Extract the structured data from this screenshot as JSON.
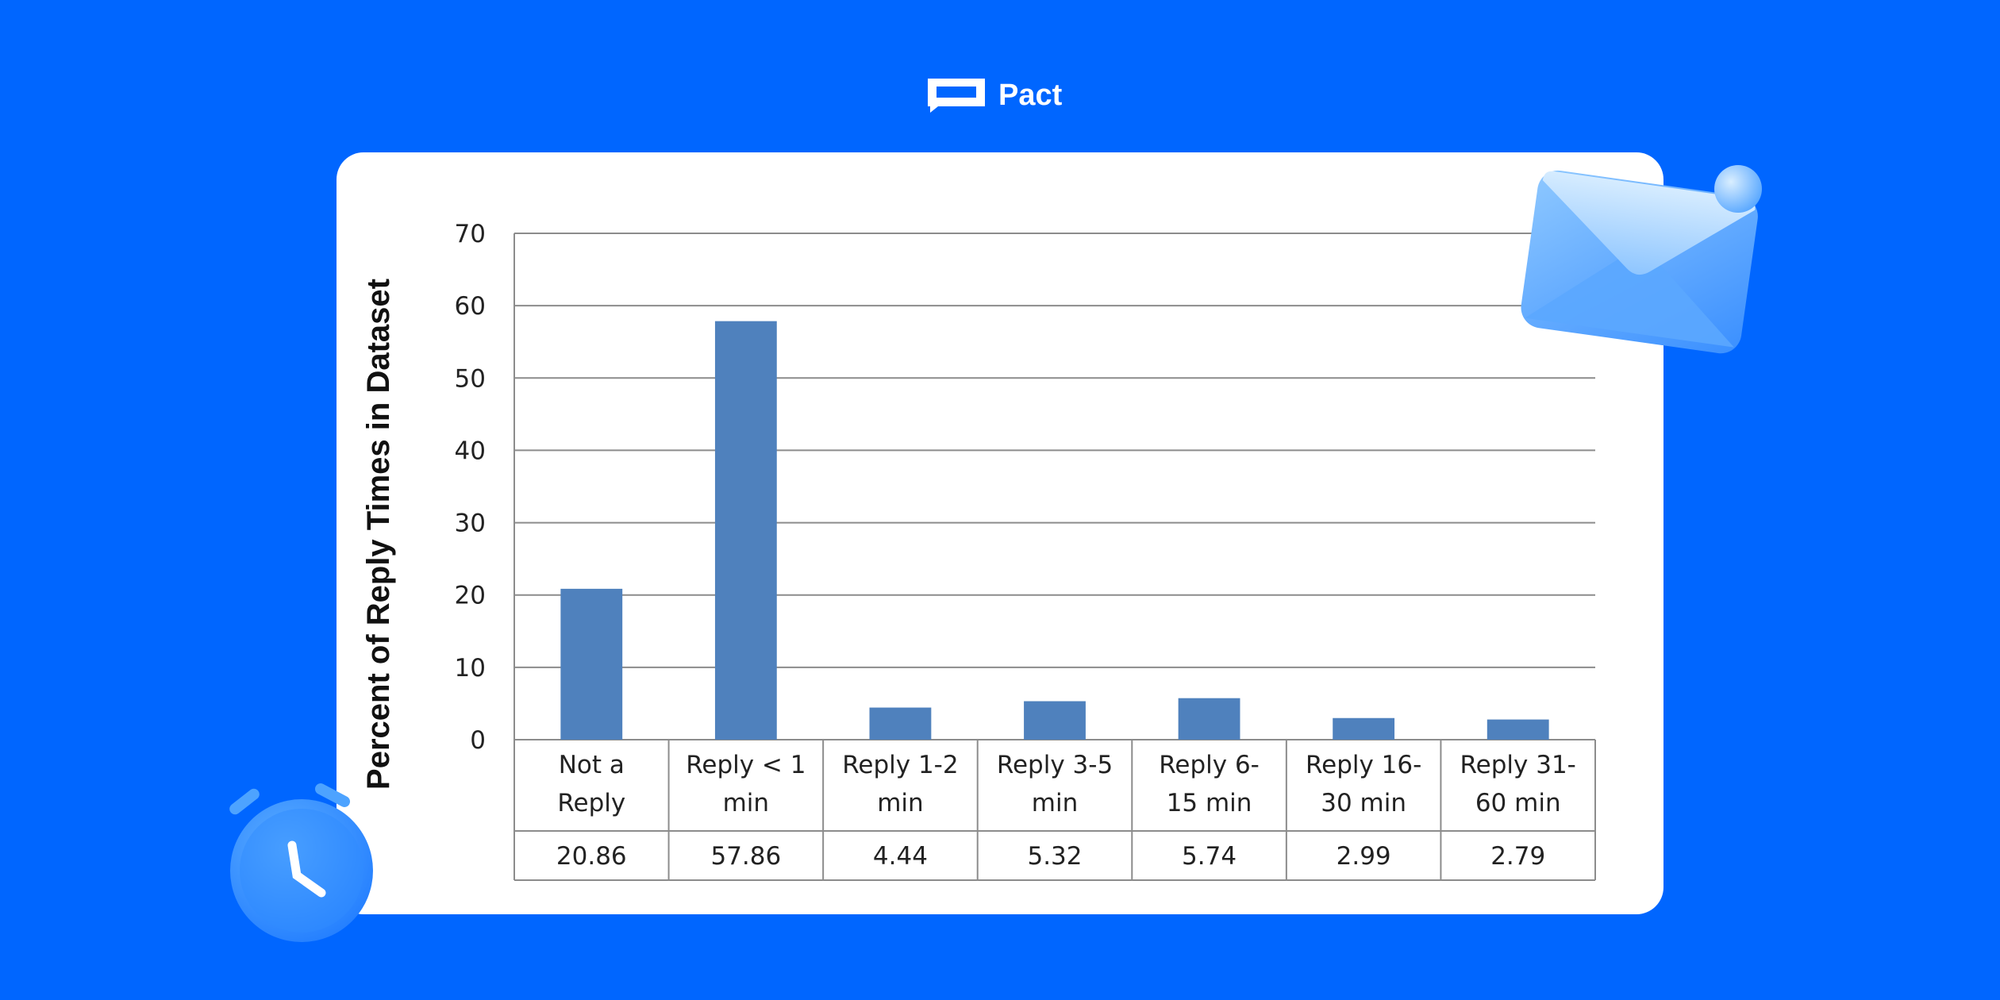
{
  "brand": {
    "name": "Pact",
    "logo_icon": "pact-logo-icon"
  },
  "colors": {
    "background": "#0066ff",
    "bar": "#4f81bd",
    "card": "#ffffff"
  },
  "decorations": {
    "envelope_icon": "envelope-icon",
    "clock_icon": "alarm-clock-icon"
  },
  "chart_data": {
    "type": "bar",
    "title": "",
    "xlabel": "",
    "ylabel": "Percent of Reply Times in Dataset",
    "ylim": [
      0,
      70
    ],
    "yticks": [
      0,
      10,
      20,
      30,
      40,
      50,
      60,
      70
    ],
    "grid": true,
    "categories": [
      [
        "Not a",
        "Reply"
      ],
      [
        "Reply < 1",
        "min"
      ],
      [
        "Reply 1-2",
        "min"
      ],
      [
        "Reply 3-5",
        "min"
      ],
      [
        "Reply 6-",
        "15 min"
      ],
      [
        "Reply 16-",
        "30 min"
      ],
      [
        "Reply 31-",
        "60 min"
      ]
    ],
    "values": [
      20.86,
      57.86,
      4.44,
      5.32,
      5.74,
      2.99,
      2.79
    ],
    "value_labels": [
      "20.86",
      "57.86",
      "4.44",
      "5.32",
      "5.74",
      "2.99",
      "2.79"
    ]
  }
}
